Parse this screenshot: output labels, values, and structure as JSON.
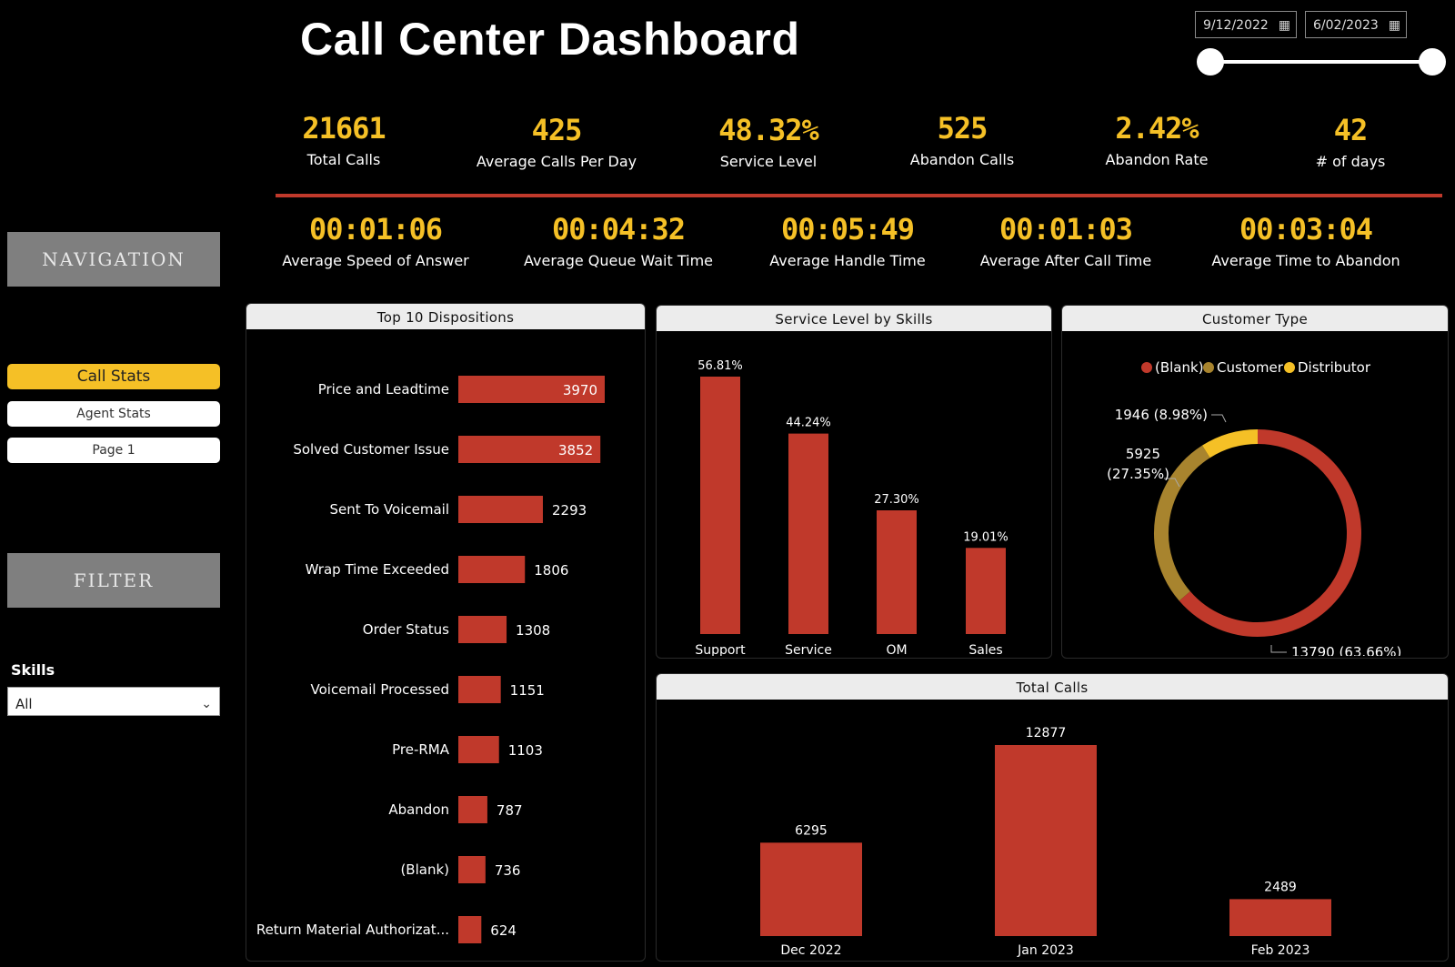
{
  "header": {
    "title": "Call Center Dashboard",
    "start_date": "9/12/2022",
    "end_date": "6/02/2023",
    "calendar_icon": "calendar-icon"
  },
  "kpis_top": [
    {
      "value": "21661",
      "label": "Total Calls"
    },
    {
      "value": "425",
      "label": "Average Calls Per Day"
    },
    {
      "value": "48.32%",
      "label": "Service Level"
    },
    {
      "value": "525",
      "label": "Abandon Calls"
    },
    {
      "value": "2.42%",
      "label": "Abandon Rate"
    },
    {
      "value": "42",
      "label": "# of days"
    }
  ],
  "kpis_time": [
    {
      "value": "00:01:06",
      "label": "Average Speed of Answer"
    },
    {
      "value": "00:04:32",
      "label": "Average Queue Wait Time"
    },
    {
      "value": "00:05:49",
      "label": "Average Handle Time"
    },
    {
      "value": "00:01:03",
      "label": "Average After Call Time"
    },
    {
      "value": "00:03:04",
      "label": "Average Time to Abandon"
    }
  ],
  "sidebar": {
    "navigation_header": "NAVIGATION",
    "nav_items": [
      "Call Stats",
      "Agent Stats",
      "Page 1"
    ],
    "active_item": "Call Stats",
    "filter_header": "FILTER",
    "skills_label": "Skills",
    "skills_value": "All"
  },
  "colors": {
    "accent": "#f5c026",
    "bar": "#c0392b",
    "customer": "#a8842e",
    "distributor": "#f5c026"
  },
  "chart_data": [
    {
      "type": "bar",
      "orientation": "horizontal",
      "title": "Top 10 Dispositions",
      "categories": [
        "Price and Leadtime",
        "Solved Customer Issue",
        "Sent To Voicemail",
        "Wrap Time Exceeded",
        "Order Status",
        "Voicemail Processed",
        "Pre-RMA",
        "Abandon",
        "(Blank)",
        "Return Material Authorizat..."
      ],
      "values": [
        3970,
        3852,
        2293,
        1806,
        1308,
        1151,
        1103,
        787,
        736,
        624
      ]
    },
    {
      "type": "bar",
      "title": "Service Level by Skills",
      "categories": [
        "Support",
        "Service",
        "OM",
        "Sales"
      ],
      "values": [
        56.81,
        44.24,
        27.3,
        19.01
      ],
      "value_labels": [
        "56.81%",
        "44.24%",
        "27.30%",
        "19.01%"
      ]
    },
    {
      "type": "pie",
      "title": "Customer Type",
      "legend": [
        "(Blank)",
        "Customer",
        "Distributor"
      ],
      "legend_position": "top",
      "slices": [
        {
          "name": "(Blank)",
          "value": 13790,
          "label": "13790 (63.66%)"
        },
        {
          "name": "Customer",
          "value": 5925,
          "label": "5925 (27.35%)"
        },
        {
          "name": "Distributor",
          "value": 1946,
          "label": "1946 (8.98%)"
        }
      ]
    },
    {
      "type": "bar",
      "title": "Total Calls",
      "categories": [
        "Dec 2022",
        "Jan 2023",
        "Feb 2023"
      ],
      "values": [
        6295,
        12877,
        2489
      ]
    }
  ]
}
